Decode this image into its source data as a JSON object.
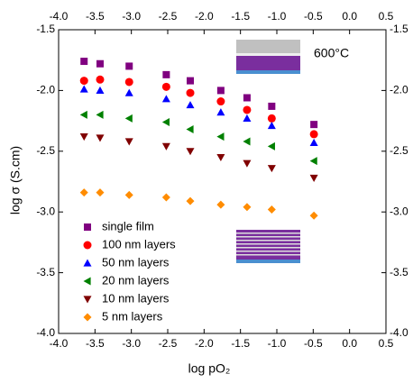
{
  "chart_data": {
    "type": "scatter",
    "annotation": "600°C",
    "x_label": "log pO₂",
    "y_label": "log σ (S.cm)",
    "xlim": [
      -4.0,
      0.5
    ],
    "ylim": [
      -4.0,
      -1.5
    ],
    "xticks": [
      {
        "value": -4.0,
        "label": "-4.0"
      },
      -3.5,
      {
        "value": -3.0,
        "label": "-3.0"
      },
      -2.5,
      {
        "value": -2.0,
        "label": "-2.0"
      },
      -1.5,
      {
        "value": -1.0,
        "label": "-1.0"
      },
      -0.5,
      {
        "value": 0.0,
        "label": "0.0"
      },
      0.5
    ],
    "yticks": [
      {
        "value": -4.0,
        "label": "-4.0"
      },
      -3.5,
      {
        "value": -3.0,
        "label": "-3.0"
      },
      -2.5,
      {
        "value": -2.0,
        "label": "-2.0"
      },
      -1.5
    ],
    "legend": "lower left",
    "x": [
      -3.65,
      -3.43,
      -3.03,
      -2.52,
      -2.19,
      -1.77,
      -1.41,
      -1.07,
      -0.49
    ],
    "series": [
      {
        "name": "single film",
        "color": "#800080",
        "marker": "square",
        "values": [
          -1.76,
          -1.78,
          -1.8,
          -1.87,
          -1.92,
          -2.0,
          -2.06,
          -2.13,
          -2.28
        ]
      },
      {
        "name": "100 nm layers",
        "color": "#ff0000",
        "marker": "circle",
        "values": [
          -1.92,
          -1.91,
          -1.93,
          -1.97,
          -2.02,
          -2.09,
          -2.16,
          -2.23,
          -2.36
        ]
      },
      {
        "name": "50 nm layers",
        "color": "#0000ff",
        "marker": "triangle-up",
        "values": [
          -1.99,
          -2.0,
          -2.02,
          -2.07,
          -2.12,
          -2.18,
          -2.23,
          -2.29,
          -2.43
        ]
      },
      {
        "name": "20 nm layers",
        "color": "#008000",
        "marker": "triangle-left",
        "values": [
          -2.2,
          -2.2,
          -2.23,
          -2.26,
          -2.32,
          -2.38,
          -2.42,
          -2.46,
          -2.58
        ]
      },
      {
        "name": "10 nm layers",
        "color": "#800000",
        "marker": "triangle-down",
        "values": [
          -2.38,
          -2.39,
          -2.42,
          -2.46,
          -2.5,
          -2.55,
          -2.6,
          -2.64,
          -2.72
        ]
      },
      {
        "name": "5 nm layers",
        "color": "#ff8c00",
        "marker": "diamond",
        "values": [
          -2.84,
          -2.84,
          -2.86,
          -2.88,
          -2.91,
          -2.94,
          -2.96,
          -2.98,
          -3.03
        ]
      }
    ]
  }
}
